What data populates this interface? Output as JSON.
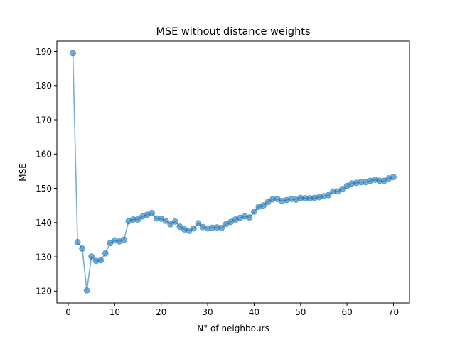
{
  "chart_data": {
    "type": "line",
    "title": "MSE without distance weights",
    "xlabel": "N° of neighbours",
    "ylabel": "MSE",
    "xlim": [
      -2.45,
      73.45
    ],
    "ylim": [
      116.55,
      193.0
    ],
    "xticks": [
      0,
      10,
      20,
      30,
      40,
      50,
      60,
      70
    ],
    "yticks": [
      120,
      130,
      140,
      150,
      160,
      170,
      180,
      190
    ],
    "grid": false,
    "legend": "none",
    "series": [
      {
        "color": "#1f77b4",
        "marker": "circle",
        "alpha": 0.6,
        "x": [
          1,
          2,
          3,
          4,
          5,
          6,
          7,
          8,
          9,
          10,
          11,
          12,
          13,
          14,
          15,
          16,
          17,
          18,
          19,
          20,
          21,
          22,
          23,
          24,
          25,
          26,
          27,
          28,
          29,
          30,
          31,
          32,
          33,
          34,
          35,
          36,
          37,
          38,
          39,
          40,
          41,
          42,
          43,
          44,
          45,
          46,
          47,
          48,
          49,
          50,
          51,
          52,
          53,
          54,
          55,
          56,
          57,
          58,
          59,
          60,
          61,
          62,
          63,
          64,
          65,
          66,
          67,
          68,
          69,
          70
        ],
        "values": [
          189.5,
          134.3,
          132.4,
          120.2,
          130.1,
          128.8,
          129.0,
          131.0,
          134.0,
          134.8,
          134.5,
          135.0,
          140.4,
          140.9,
          140.9,
          141.8,
          142.3,
          142.8,
          141.2,
          141.1,
          140.5,
          139.5,
          140.3,
          138.8,
          138.0,
          137.6,
          138.3,
          139.8,
          138.7,
          138.3,
          138.5,
          138.6,
          138.4,
          139.6,
          140.2,
          140.9,
          141.4,
          141.8,
          141.5,
          143.2,
          144.6,
          145.0,
          146.0,
          146.8,
          146.9,
          146.3,
          146.6,
          146.9,
          146.7,
          147.2,
          147.1,
          147.1,
          147.2,
          147.4,
          147.7,
          148.0,
          149.1,
          149.1,
          149.8,
          150.7,
          151.4,
          151.6,
          151.8,
          151.8,
          152.2,
          152.5,
          152.2,
          152.2,
          152.9,
          153.3
        ]
      }
    ]
  }
}
